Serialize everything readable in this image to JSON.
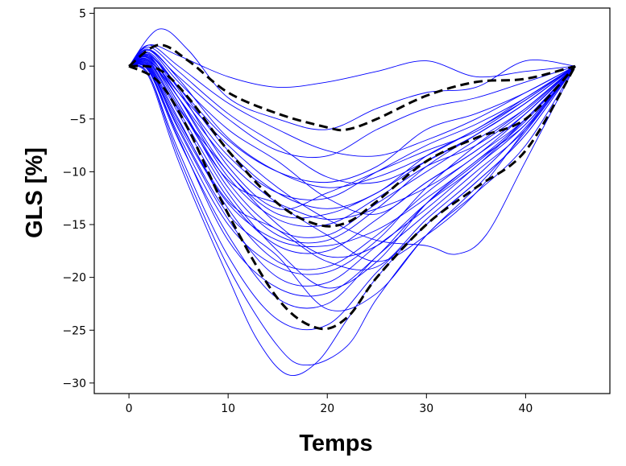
{
  "chart_data": {
    "type": "line",
    "title": "",
    "xlabel": "Temps",
    "ylabel": "GLS [%]",
    "xlim": [
      -3.5,
      48.5
    ],
    "ylim": [
      -31,
      5.5
    ],
    "xticks": [
      0,
      10,
      20,
      30,
      40
    ],
    "yticks": [
      5,
      0,
      -5,
      -10,
      -15,
      -20,
      -25,
      -30
    ],
    "grid": false,
    "legend": "none",
    "colors": {
      "individual": "#0000ff",
      "reference": "#000000"
    },
    "individual_curves": [
      {
        "x": [
          0,
          2,
          5,
          10,
          15,
          20,
          25,
          30,
          35,
          40,
          45
        ],
        "y": [
          0,
          2.0,
          1.0,
          -1.0,
          -2.0,
          -1.5,
          -0.5,
          0.5,
          -1.0,
          -0.5,
          0
        ]
      },
      {
        "x": [
          0,
          3,
          6,
          10,
          15,
          20,
          25,
          30,
          35,
          40,
          45
        ],
        "y": [
          0,
          3.5,
          1.5,
          -3.0,
          -5.0,
          -6.0,
          -4.0,
          -2.5,
          -2.0,
          0.5,
          0
        ]
      },
      {
        "x": [
          0,
          2,
          5,
          10,
          15,
          20,
          25,
          30,
          35,
          40,
          45
        ],
        "y": [
          0,
          1.5,
          -1.0,
          -5.0,
          -8.0,
          -8.5,
          -6.0,
          -4.0,
          -3.0,
          -1.5,
          0
        ]
      },
      {
        "x": [
          0,
          2,
          5,
          10,
          15,
          20,
          25,
          30,
          35,
          40,
          45
        ],
        "y": [
          0,
          1.0,
          -2.0,
          -7.0,
          -10.0,
          -11.0,
          -9.5,
          -6.0,
          -4.5,
          -2.5,
          0
        ]
      },
      {
        "x": [
          0,
          2,
          5,
          10,
          15,
          20,
          25,
          30,
          35,
          40,
          45
        ],
        "y": [
          0,
          1.2,
          -2.5,
          -8.5,
          -12.0,
          -12.5,
          -10.0,
          -7.5,
          -5.5,
          -3.0,
          0
        ]
      },
      {
        "x": [
          0,
          2,
          5,
          10,
          15,
          20,
          25,
          30,
          35,
          40,
          45
        ],
        "y": [
          0,
          0.5,
          -3.0,
          -10.0,
          -14.0,
          -14.0,
          -12.0,
          -9.0,
          -6.5,
          -3.5,
          0
        ]
      },
      {
        "x": [
          0,
          2,
          5,
          10,
          15,
          20,
          25,
          30,
          35,
          40,
          45
        ],
        "y": [
          0,
          0.8,
          -3.5,
          -11.0,
          -15.5,
          -16.0,
          -13.0,
          -10.0,
          -7.0,
          -4.0,
          0
        ]
      },
      {
        "x": [
          0,
          2,
          5,
          10,
          15,
          20,
          25,
          30,
          35,
          40,
          45
        ],
        "y": [
          0,
          0.3,
          -4.5,
          -12.5,
          -17.0,
          -17.5,
          -14.5,
          -11.0,
          -8.0,
          -4.5,
          0
        ]
      },
      {
        "x": [
          0,
          2,
          5,
          10,
          15,
          20,
          25,
          30,
          35,
          40,
          45
        ],
        "y": [
          0,
          0.2,
          -5.0,
          -13.5,
          -18.5,
          -19.0,
          -16.0,
          -12.0,
          -8.5,
          -5.0,
          0
        ]
      },
      {
        "x": [
          0,
          2,
          5,
          10,
          15,
          20,
          25,
          30,
          35,
          40,
          45
        ],
        "y": [
          0,
          -0.2,
          -6.0,
          -14.5,
          -20.0,
          -20.5,
          -17.0,
          -13.5,
          -9.5,
          -5.5,
          0
        ]
      },
      {
        "x": [
          0,
          2,
          5,
          10,
          15,
          20,
          25,
          30,
          35,
          40,
          45
        ],
        "y": [
          0,
          -0.5,
          -7.0,
          -16.0,
          -22.0,
          -22.5,
          -18.0,
          -14.0,
          -10.0,
          -6.0,
          0
        ]
      },
      {
        "x": [
          0,
          2,
          5,
          10,
          15,
          20,
          25,
          30,
          35,
          40,
          45
        ],
        "y": [
          0,
          -0.8,
          -8.0,
          -18.0,
          -24.0,
          -24.5,
          -19.5,
          -15.0,
          -11.0,
          -6.5,
          0
        ]
      },
      {
        "x": [
          0,
          2,
          5,
          10,
          13,
          16,
          19,
          22,
          25,
          30,
          35,
          40,
          45
        ],
        "y": [
          0,
          -1.0,
          -9.0,
          -20.0,
          -26.0,
          -29.2,
          -28.0,
          -24.0,
          -20.0,
          -15.0,
          -11.0,
          -6.5,
          0
        ]
      },
      {
        "x": [
          0,
          2,
          5,
          10,
          15,
          18,
          22,
          25,
          30,
          35,
          40,
          45
        ],
        "y": [
          0,
          -0.8,
          -8.5,
          -19.0,
          -26.5,
          -28.3,
          -26.5,
          -22.0,
          -16.0,
          -12.0,
          -7.5,
          0
        ]
      },
      {
        "x": [
          0,
          2,
          5,
          10,
          15,
          20,
          25,
          30,
          35,
          40,
          45
        ],
        "y": [
          0,
          0.5,
          -4.0,
          -10.0,
          -15.0,
          -18.0,
          -17.0,
          -13.0,
          -9.5,
          -5.0,
          0
        ]
      },
      {
        "x": [
          0,
          2,
          5,
          10,
          15,
          20,
          25,
          30,
          35,
          40,
          45
        ],
        "y": [
          0,
          1.0,
          -3.0,
          -9.0,
          -13.0,
          -16.0,
          -18.5,
          -16.0,
          -12.0,
          -6.0,
          0
        ]
      },
      {
        "x": [
          0,
          2,
          5,
          10,
          15,
          20,
          25,
          30,
          33,
          36,
          40,
          45
        ],
        "y": [
          0,
          0.8,
          -2.5,
          -7.5,
          -11.5,
          -14.5,
          -16.5,
          -17.0,
          -17.8,
          -16.0,
          -9.0,
          0
        ]
      },
      {
        "x": [
          0,
          2,
          5,
          10,
          15,
          20,
          25,
          30,
          35,
          40,
          45
        ],
        "y": [
          0,
          1.5,
          -1.5,
          -6.0,
          -9.0,
          -12.5,
          -14.0,
          -11.0,
          -8.0,
          -4.5,
          0
        ]
      },
      {
        "x": [
          0,
          2,
          5,
          10,
          15,
          20,
          25,
          30,
          35,
          40,
          45
        ],
        "y": [
          0,
          1.8,
          -0.5,
          -4.5,
          -7.5,
          -10.5,
          -11.0,
          -9.0,
          -6.5,
          -3.5,
          0
        ]
      },
      {
        "x": [
          0,
          2,
          5,
          10,
          15,
          20,
          25,
          30,
          35,
          40,
          45
        ],
        "y": [
          0,
          2.0,
          0.0,
          -3.5,
          -6.0,
          -8.0,
          -8.5,
          -7.0,
          -5.0,
          -2.5,
          0
        ]
      },
      {
        "x": [
          0,
          2,
          5,
          10,
          15,
          20,
          25,
          30,
          35,
          40,
          45
        ],
        "y": [
          0,
          0.0,
          -5.5,
          -13.0,
          -16.5,
          -17.0,
          -15.5,
          -12.5,
          -9.0,
          -5.0,
          0
        ]
      },
      {
        "x": [
          0,
          2,
          5,
          10,
          15,
          20,
          25,
          30,
          35,
          40,
          45
        ],
        "y": [
          0,
          -0.3,
          -6.5,
          -15.0,
          -19.0,
          -19.5,
          -16.5,
          -11.5,
          -7.5,
          -4.0,
          0
        ]
      },
      {
        "x": [
          0,
          2,
          5,
          10,
          15,
          20,
          25,
          30,
          35,
          40,
          45
        ],
        "y": [
          0,
          0.6,
          -3.5,
          -11.5,
          -16.0,
          -16.5,
          -13.5,
          -9.5,
          -6.5,
          -3.5,
          0
        ]
      },
      {
        "x": [
          0,
          2,
          5,
          10,
          15,
          20,
          25,
          30,
          35,
          40,
          45
        ],
        "y": [
          0,
          1.3,
          -2.0,
          -8.0,
          -12.0,
          -13.5,
          -12.0,
          -8.5,
          -6.0,
          -3.0,
          0
        ]
      },
      {
        "x": [
          0,
          2,
          5,
          10,
          15,
          20,
          25,
          30,
          35,
          40,
          45
        ],
        "y": [
          0,
          0.4,
          -4.2,
          -12.0,
          -17.5,
          -21.0,
          -18.5,
          -13.0,
          -9.0,
          -5.5,
          0
        ]
      },
      {
        "x": [
          0,
          2,
          5,
          10,
          15,
          20,
          25,
          30,
          35,
          40,
          45
        ],
        "y": [
          0,
          0.9,
          -3.0,
          -10.5,
          -14.5,
          -15.0,
          -12.5,
          -9.5,
          -7.5,
          -4.2,
          0
        ]
      },
      {
        "x": [
          0,
          2,
          5,
          10,
          15,
          20,
          25,
          30,
          35,
          40,
          45
        ],
        "y": [
          0,
          1.1,
          -2.2,
          -9.5,
          -13.5,
          -12.0,
          -10.0,
          -8.0,
          -6.2,
          -3.2,
          0
        ]
      },
      {
        "x": [
          0,
          2,
          5,
          10,
          15,
          20,
          25,
          30,
          35,
          40,
          45
        ],
        "y": [
          0,
          -0.4,
          -6.8,
          -16.5,
          -21.0,
          -21.5,
          -18.0,
          -13.0,
          -9.2,
          -5.2,
          0
        ]
      },
      {
        "x": [
          0,
          2,
          5,
          10,
          15,
          20,
          25,
          30,
          35,
          40,
          45
        ],
        "y": [
          0,
          0.1,
          -5.2,
          -12.8,
          -15.5,
          -18.5,
          -19.0,
          -14.5,
          -10.5,
          -5.8,
          0
        ]
      },
      {
        "x": [
          0,
          2,
          5,
          10,
          15,
          20,
          25,
          30,
          35,
          40,
          45
        ],
        "y": [
          0,
          1.6,
          -1.2,
          -6.8,
          -10.0,
          -11.5,
          -10.5,
          -8.5,
          -6.0,
          -3.2,
          0
        ]
      },
      {
        "x": [
          0,
          2,
          5,
          10,
          15,
          20,
          25,
          30,
          35,
          40,
          45
        ],
        "y": [
          0,
          0.7,
          -3.8,
          -10.8,
          -13.0,
          -14.5,
          -13.5,
          -11.5,
          -8.5,
          -4.5,
          0
        ]
      },
      {
        "x": [
          0,
          2,
          5,
          10,
          15,
          20,
          25,
          30,
          35,
          40,
          45
        ],
        "y": [
          0,
          -0.1,
          -5.8,
          -14.0,
          -18.0,
          -23.0,
          -21.5,
          -16.0,
          -11.5,
          -6.2,
          0
        ]
      }
    ],
    "reference_curves": [
      {
        "name": "",
        "x": [
          0,
          3,
          6,
          10,
          15,
          20,
          22,
          25,
          30,
          35,
          40,
          45
        ],
        "y": [
          0,
          2.0,
          0.5,
          -2.5,
          -4.5,
          -5.8,
          -6.0,
          -5.0,
          -2.8,
          -1.5,
          -1.2,
          0
        ]
      },
      {
        "name": "",
        "x": [
          0,
          3,
          6,
          10,
          15,
          19,
          22,
          25,
          30,
          35,
          40,
          45
        ],
        "y": [
          0,
          -0.3,
          -3.0,
          -8.0,
          -13.0,
          -15.0,
          -14.8,
          -12.8,
          -9.0,
          -6.8,
          -5.0,
          0
        ]
      },
      {
        "name": "",
        "x": [
          0,
          3,
          6,
          10,
          15,
          19,
          22,
          25,
          30,
          35,
          40,
          45
        ],
        "y": [
          0,
          -1.5,
          -6.0,
          -14.0,
          -22.0,
          -24.8,
          -23.8,
          -20.0,
          -15.0,
          -11.5,
          -8.0,
          0
        ]
      }
    ]
  }
}
